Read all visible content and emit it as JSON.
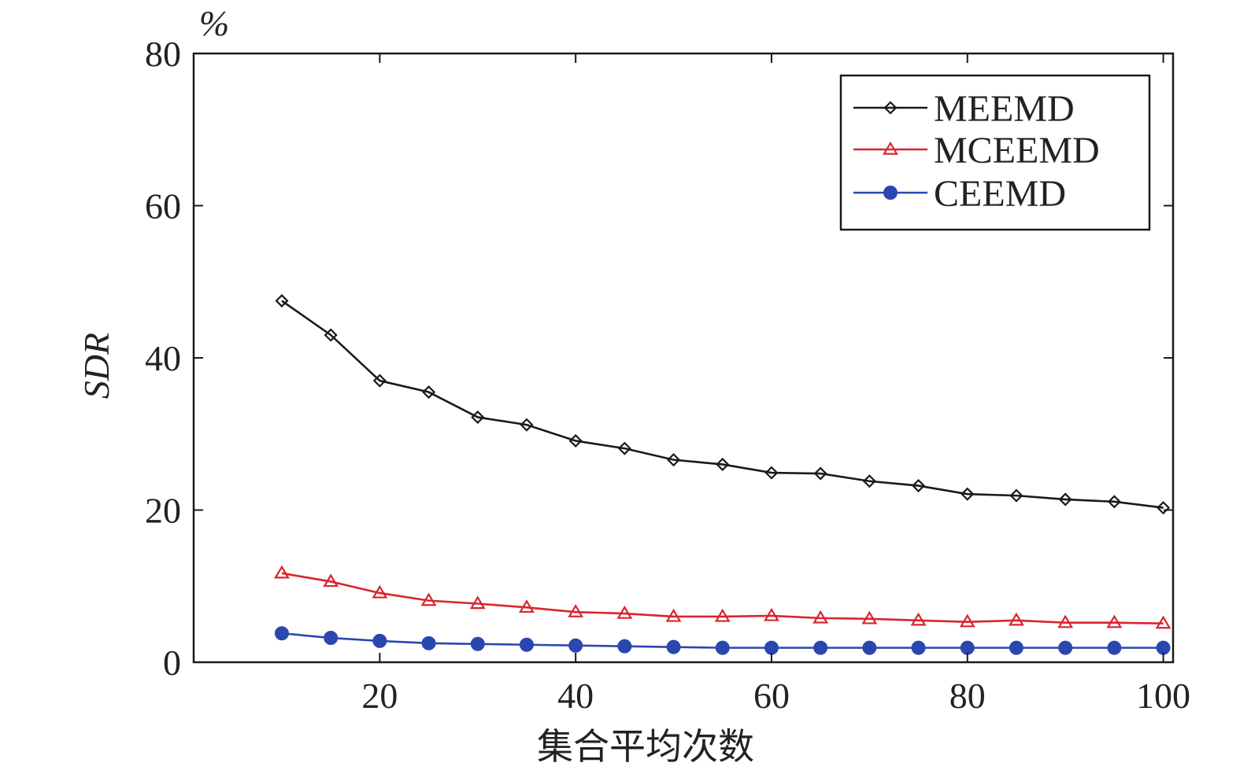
{
  "chart_data": {
    "type": "line",
    "title": "",
    "xlabel": "集合平均次数",
    "ylabel": "SDR",
    "unit_label": "%",
    "xlim": [
      1,
      101
    ],
    "ylim": [
      0,
      80
    ],
    "xticks": [
      20,
      40,
      60,
      80,
      100
    ],
    "yticks": [
      0,
      20,
      40,
      60,
      80
    ],
    "legend_position": "top-right",
    "grid": false,
    "x": [
      10,
      15,
      20,
      25,
      30,
      35,
      40,
      45,
      50,
      55,
      60,
      65,
      70,
      75,
      80,
      85,
      90,
      95,
      100
    ],
    "series": [
      {
        "name": "MEEMD",
        "color": "#1a1a1a",
        "marker": "diamond",
        "values": [
          47.5,
          43,
          37,
          35.5,
          32.2,
          31.2,
          29.1,
          28.1,
          26.6,
          26.0,
          24.9,
          24.8,
          23.8,
          23.2,
          22.1,
          21.9,
          21.4,
          21.1,
          20.3
        ]
      },
      {
        "name": "MCEEMD",
        "color": "#d9252c",
        "marker": "triangle",
        "values": [
          11.7,
          10.6,
          9.1,
          8.1,
          7.7,
          7.2,
          6.6,
          6.4,
          6.0,
          6.0,
          6.1,
          5.8,
          5.7,
          5.5,
          5.3,
          5.5,
          5.2,
          5.2,
          5.1
        ]
      },
      {
        "name": "CEEMD",
        "color": "#2a47b0",
        "marker": "circle",
        "values": [
          3.8,
          3.2,
          2.8,
          2.5,
          2.4,
          2.3,
          2.2,
          2.1,
          2.0,
          1.9,
          1.9,
          1.9,
          1.9,
          1.9,
          1.9,
          1.9,
          1.9,
          1.9,
          1.9
        ]
      }
    ]
  }
}
